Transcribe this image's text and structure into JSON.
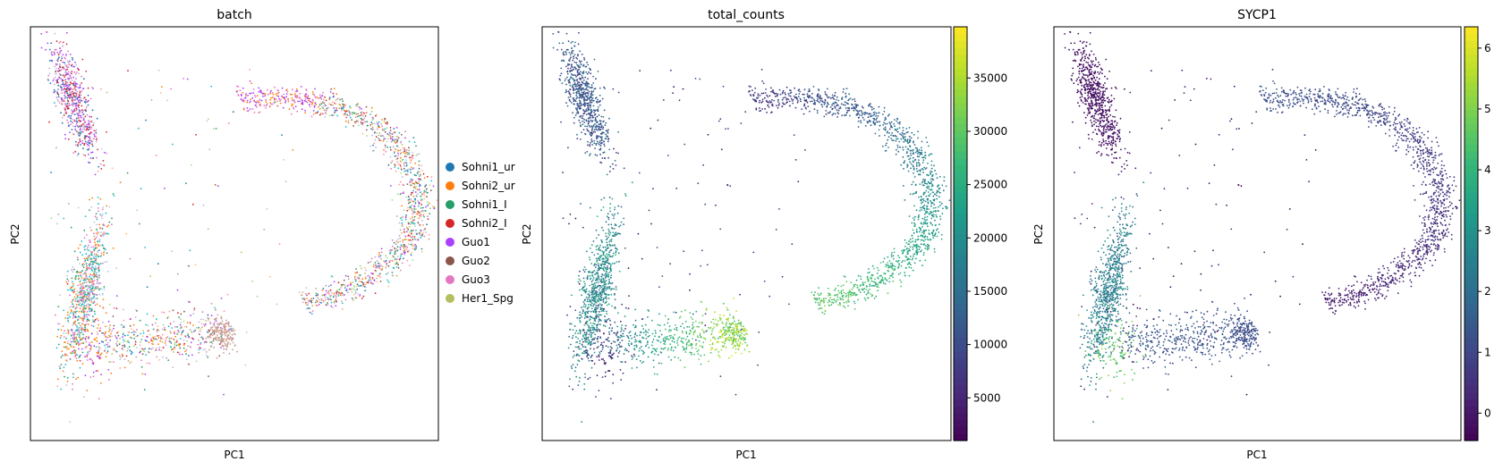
{
  "figure": {
    "panels": [
      {
        "title": "batch",
        "xlabel": "PC1",
        "ylabel": "PC2"
      },
      {
        "title": "total_counts",
        "xlabel": "PC1",
        "ylabel": "PC2"
      },
      {
        "title": "SYCP1",
        "xlabel": "PC1",
        "ylabel": "PC2"
      }
    ]
  },
  "chart_data": [
    {
      "type": "scatter",
      "title": "batch",
      "xlabel": "PC1",
      "ylabel": "PC2",
      "x_ticks": "none",
      "y_ticks": "none",
      "grid": false,
      "legend": {
        "placement": "right-outside",
        "entries": [
          {
            "label": "Sohni1_ur",
            "color": "#1f77b4"
          },
          {
            "label": "Sohni2_ur",
            "color": "#ff7f0e"
          },
          {
            "label": "Sohni1_I",
            "color": "#279e68"
          },
          {
            "label": "Sohni2_I",
            "color": "#d62728"
          },
          {
            "label": "Guo1",
            "color": "#aa40fc"
          },
          {
            "label": "Guo2",
            "color": "#8c564b"
          },
          {
            "label": "Guo3",
            "color": "#e377c2"
          },
          {
            "label": "Her1_Spg",
            "color": "#b5bd61"
          }
        ]
      },
      "extra_colors": [
        "#17becf",
        "#aec7e8",
        "#ffbb78",
        "#98df8a",
        "#ff9896",
        "#c5b0d5",
        "#c49c94"
      ]
    },
    {
      "type": "scatter",
      "title": "total_counts",
      "xlabel": "PC1",
      "ylabel": "PC2",
      "colormap": "viridis",
      "colorbar": {
        "min": 1000,
        "max": 39800,
        "ticks": [
          5000,
          10000,
          15000,
          20000,
          25000,
          30000,
          35000
        ],
        "tick_labels": [
          "5000",
          "10000",
          "15000",
          "20000",
          "25000",
          "30000",
          "35000"
        ]
      },
      "grid": false
    },
    {
      "type": "scatter",
      "title": "SYCP1",
      "xlabel": "PC1",
      "ylabel": "PC2",
      "colormap": "viridis",
      "colorbar": {
        "min": -0.45,
        "max": 6.35,
        "ticks": [
          0,
          1,
          2,
          3,
          4,
          5,
          6
        ],
        "tick_labels": [
          "0",
          "1",
          "2",
          "3",
          "4",
          "5",
          "6"
        ]
      },
      "grid": false
    }
  ]
}
